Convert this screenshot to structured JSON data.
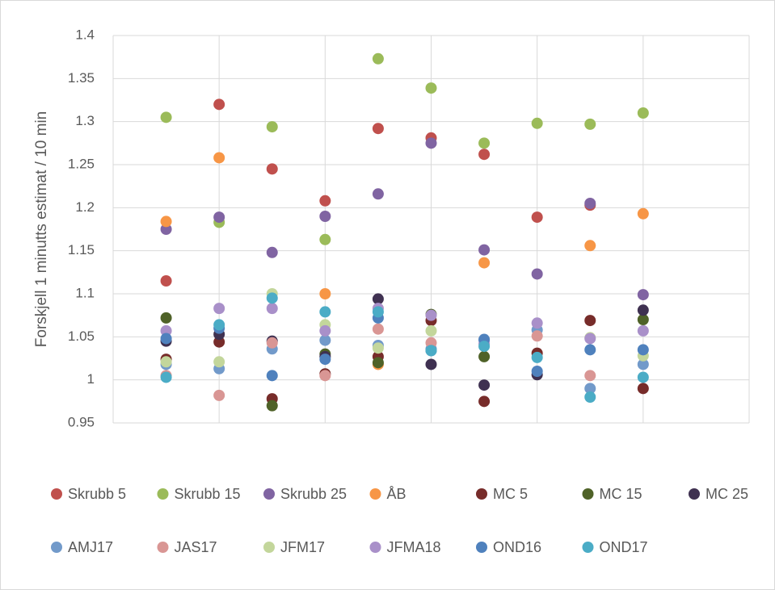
{
  "chart_data": {
    "type": "scatter",
    "ylabel": "Forskjell 1 minutts estimat / 10 min",
    "x": [
      1,
      2,
      3,
      4,
      5,
      6,
      7,
      8,
      9,
      10
    ],
    "xlim": [
      0,
      12
    ],
    "xticks": [
      0,
      2,
      4,
      6,
      8,
      10,
      12
    ],
    "ylim": [
      0.95,
      1.4
    ],
    "yticks": [
      0.95,
      1,
      1.05,
      1.1,
      1.15,
      1.2,
      1.25,
      1.3,
      1.35,
      1.4
    ],
    "grid": true,
    "legend": "bottom",
    "series": [
      {
        "name": "Skrubb 5",
        "color": "#c0504d",
        "values": [
          1.115,
          1.32,
          1.245,
          1.208,
          1.292,
          1.281,
          1.262,
          1.189,
          1.203,
          null
        ]
      },
      {
        "name": "Skrubb 15",
        "color": "#9bbb59",
        "values": [
          1.305,
          1.183,
          1.294,
          1.163,
          1.373,
          1.339,
          1.275,
          1.298,
          1.297,
          1.31
        ]
      },
      {
        "name": "Skrubb 25",
        "color": "#8064a2",
        "values": [
          1.175,
          1.189,
          1.148,
          1.19,
          1.216,
          1.275,
          1.151,
          1.123,
          1.205,
          1.099
        ]
      },
      {
        "name": "ÅB",
        "color": "#f79646",
        "values": [
          1.184,
          1.258,
          null,
          1.1,
          1.018,
          null,
          1.136,
          null,
          1.156,
          1.193
        ]
      },
      {
        "name": "MC 5",
        "color": "#772c2a",
        "values": [
          1.024,
          1.044,
          0.978,
          1.007,
          1.027,
          1.069,
          0.975,
          1.031,
          1.069,
          0.99
        ]
      },
      {
        "name": "MC 15",
        "color": "#4f6228",
        "values": [
          1.072,
          null,
          0.97,
          1.03,
          1.02,
          1.076,
          1.027,
          null,
          null,
          1.07
        ]
      },
      {
        "name": "MC 25",
        "color": "#3f3151",
        "values": [
          1.045,
          1.053,
          1.045,
          1.027,
          1.094,
          1.018,
          0.994,
          1.006,
          null,
          1.081
        ]
      },
      {
        "name": "AMJ17",
        "color": "#729aca",
        "values": [
          1.018,
          1.013,
          1.036,
          1.046,
          1.04,
          1.036,
          1.046,
          1.058,
          0.99,
          1.018
        ]
      },
      {
        "name": "JAS17",
        "color": "#d99694",
        "values": [
          1.005,
          0.982,
          1.043,
          1.005,
          1.059,
          1.043,
          null,
          1.051,
          1.005,
          null
        ]
      },
      {
        "name": "JFM17",
        "color": "#c3d69b",
        "values": [
          1.021,
          1.021,
          1.1,
          1.064,
          1.037,
          1.057,
          null,
          null,
          1.049,
          1.028
        ]
      },
      {
        "name": "JFMA18",
        "color": "#a990c9",
        "values": [
          1.057,
          1.083,
          1.083,
          1.057,
          1.083,
          1.075,
          1.042,
          1.066,
          1.048,
          1.057
        ]
      },
      {
        "name": "OND16",
        "color": "#4f81bd",
        "values": [
          1.048,
          1.06,
          1.005,
          1.024,
          1.072,
          1.034,
          1.047,
          1.01,
          1.035,
          1.035
        ]
      },
      {
        "name": "OND17",
        "color": "#4bacc6",
        "values": [
          1.003,
          1.064,
          1.095,
          1.079,
          1.079,
          1.034,
          1.039,
          1.026,
          0.98,
          1.003
        ]
      }
    ]
  }
}
